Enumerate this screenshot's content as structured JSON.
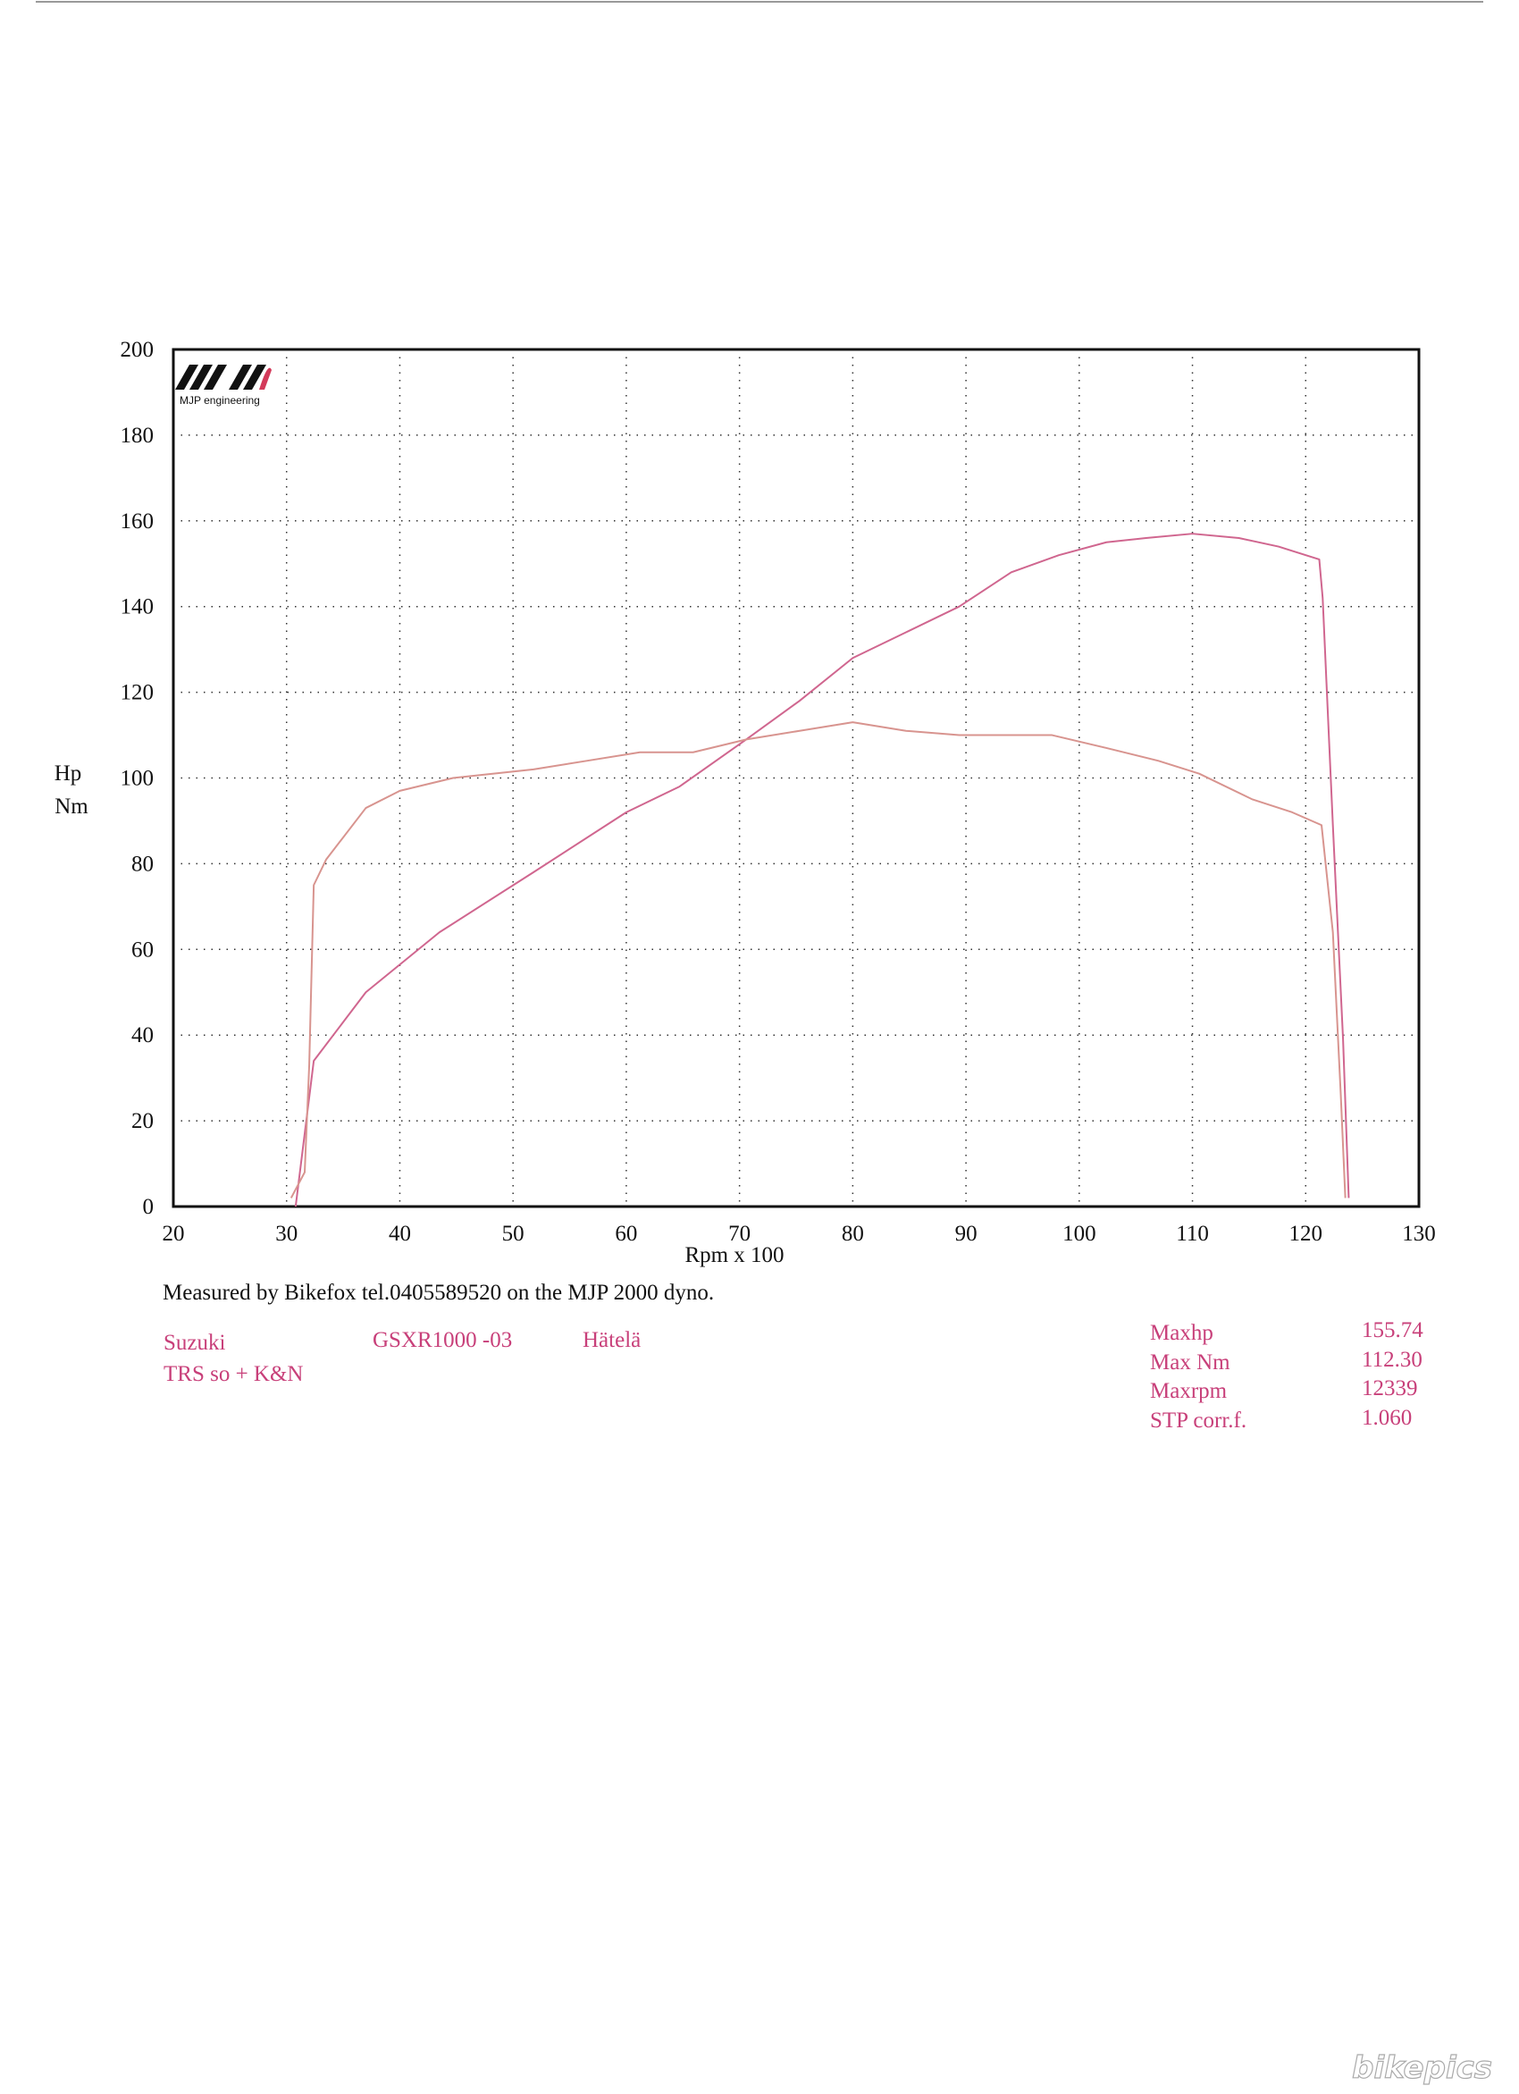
{
  "chart_data": {
    "type": "line",
    "x_label": "Rpm x 100",
    "y_label": [
      "Hp",
      "Nm"
    ],
    "xlim": [
      20,
      130
    ],
    "xticks": [
      20,
      30,
      40,
      50,
      60,
      70,
      80,
      90,
      100,
      110,
      120,
      130
    ],
    "ylim": [
      0,
      200
    ],
    "yticks": [
      0,
      20,
      40,
      60,
      80,
      100,
      120,
      140,
      160,
      180,
      200
    ],
    "grid": true,
    "series": [
      {
        "color": "#d0668f",
        "x": [
          30.8,
          32.4,
          37,
          43.5,
          51.8,
          60,
          64.7,
          70.6,
          75.3,
          80,
          84.7,
          89.4,
          94,
          98.2,
          102.4,
          105.9,
          110,
          114.1,
          117.6,
          121.2,
          121.5,
          122.4,
          123.3,
          123.8
        ],
        "values": [
          0,
          34,
          50,
          64,
          78,
          92,
          98,
          109,
          118,
          128,
          134,
          140,
          148,
          152,
          155,
          156,
          157,
          156,
          154,
          151,
          142,
          89,
          39,
          2
        ]
      },
      {
        "color": "#d8948f",
        "x": [
          30.4,
          31.6,
          32,
          32.4,
          33.5,
          37,
          40,
          44.7,
          51.8,
          56.5,
          61.2,
          65.9,
          70.6,
          75.3,
          80,
          84.7,
          89.4,
          97.6,
          102.4,
          107,
          110.6,
          115.3,
          118.8,
          121.4,
          122.4,
          123.1,
          123.5
        ],
        "values": [
          2,
          8,
          33,
          75,
          81,
          93,
          97,
          100,
          102,
          104,
          106,
          106,
          109,
          111,
          113,
          111,
          110,
          110,
          107,
          104,
          101,
          95,
          92,
          89,
          64,
          26,
          2
        ]
      }
    ]
  },
  "logo": "MJP engineering",
  "footer_note": "Measured by Bikefox tel.0405589520 on the MJP 2000 dyno.",
  "vehicle": {
    "make": "Suzuki",
    "model": "GSXR1000 -03",
    "owner": "Hätelä",
    "setup": "TRS so + K&N"
  },
  "stats": [
    [
      "Maxhp",
      "155.74"
    ],
    [
      "Max Nm",
      "112.30"
    ],
    [
      "Maxrpm",
      "12339"
    ],
    [
      "STP corr.f.",
      "1.060"
    ]
  ],
  "watermark": "bikepics"
}
